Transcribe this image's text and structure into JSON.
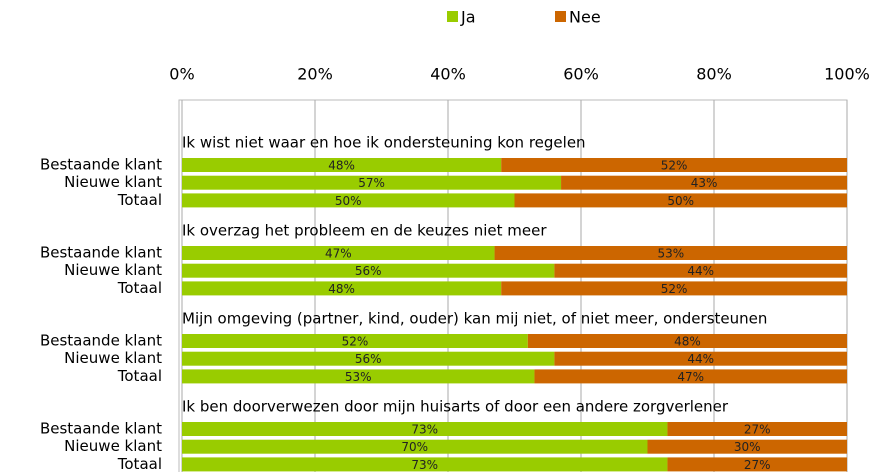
{
  "chart_data": {
    "type": "bar",
    "orientation": "horizontal",
    "stacked": true,
    "categories": [
      "Bestaande klant",
      "Nieuwe klant",
      "Totaal",
      "Bestaande klant",
      "Nieuwe klant",
      "Totaal",
      "Bestaande klant",
      "Nieuwe klant",
      "Totaal",
      "Bestaande klant",
      "Nieuwe klant",
      "Totaal"
    ],
    "group_titles": [
      "Ik wist niet waar en hoe ik ondersteuning kon regelen",
      "Ik overzag het probleem en de keuzes niet meer",
      "Mijn omgeving (partner, kind, ouder) kan mij niet, of niet meer, ondersteunen",
      "Ik ben doorverwezen door mijn huisarts of door een andere zorgverlener"
    ],
    "series": [
      {
        "name": "Ja",
        "color": "#99cc00",
        "values": [
          48,
          57,
          50,
          47,
          56,
          48,
          52,
          56,
          53,
          73,
          70,
          73
        ],
        "value_labels": [
          "48%",
          "57%",
          "50%",
          "47%",
          "56%",
          "48%",
          "52%",
          "56%",
          "53%",
          "73%",
          "70%",
          "73%"
        ]
      },
      {
        "name": "Nee",
        "color": "#cc6600",
        "values": [
          52,
          43,
          50,
          53,
          44,
          52,
          48,
          44,
          47,
          27,
          30,
          27
        ],
        "value_labels": [
          "52%",
          "43%",
          "50%",
          "53%",
          "44%",
          "52%",
          "48%",
          "44%",
          "47%",
          "27%",
          "30%",
          "27%"
        ]
      }
    ],
    "xlim": [
      0,
      100
    ],
    "xticks": [
      {
        "value": 0,
        "label": "0%"
      },
      {
        "value": 20,
        "label": "20%"
      },
      {
        "value": 40,
        "label": "40%"
      },
      {
        "value": 60,
        "label": "60%"
      },
      {
        "value": 80,
        "label": "80%"
      },
      {
        "value": 100,
        "label": "100%"
      }
    ],
    "grid": true,
    "legend": "top"
  }
}
